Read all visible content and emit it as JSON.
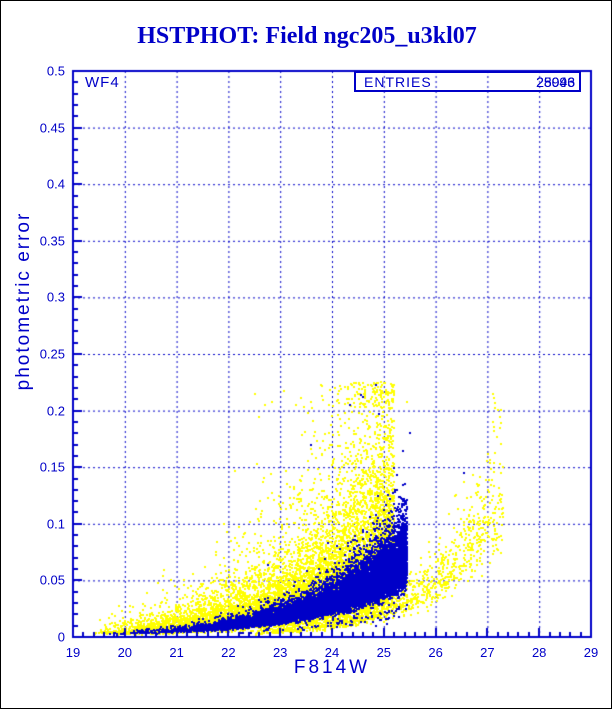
{
  "accent_color": "#0000C8",
  "title": {
    "text": "HSTPHOT: Field ngc205_u3kl07"
  },
  "plot": {
    "detector_label": "WF4",
    "stats_box": {
      "label": "ENTRIES",
      "values": [
        "28996",
        "25043"
      ]
    },
    "x_axis": {
      "label": "F814W",
      "tick_labels": [
        "19",
        "20",
        "21",
        "22",
        "23",
        "24",
        "25",
        "26",
        "27",
        "28",
        "29"
      ]
    },
    "y_axis": {
      "label": "photometric error",
      "tick_labels": [
        "0",
        "0.05",
        "0.1",
        "0.15",
        "0.2",
        "0.25",
        "0.3",
        "0.35",
        "0.4",
        "0.45",
        "0.5"
      ]
    }
  },
  "chart_data": {
    "type": "scatter",
    "title": "HSTPHOT: Field ngc205_u3kl07",
    "xlabel": "F814W",
    "ylabel": "photometric error",
    "xlim": [
      19,
      29
    ],
    "ylim": [
      0,
      0.5
    ],
    "x_major_ticks": [
      19,
      20,
      21,
      22,
      23,
      24,
      25,
      26,
      27,
      28,
      29
    ],
    "x_minor_step": 0.2,
    "y_major_ticks": [
      0,
      0.05,
      0.1,
      0.15,
      0.2,
      0.25,
      0.3,
      0.35,
      0.4,
      0.45,
      0.5
    ],
    "y_minor_step": 0.01,
    "grid": {
      "style": "dashed",
      "on_major_x": true,
      "on_major_y": true
    },
    "annotations": {
      "detector": "WF4",
      "entries_overprinted": [
        28996,
        25043
      ]
    },
    "marker_px": 2,
    "err_clamp": [
      0.0015,
      0.225
    ],
    "series": [
      {
        "name": "yellow-error-cloud",
        "color": "#FFFF00",
        "kind": "generated-band",
        "n": 12000,
        "seed": 11,
        "mag_min": 19.35,
        "mag_max": 25.2,
        "mag_power": 0.45,
        "err_at_bright": 0.0038,
        "err_growth_k": 0.5,
        "sigma_down": 0.4,
        "sigma_up": 0.7,
        "description": "dense diffuse yellow cloud, errors ~0.004 at mag 19.5 rising to ~0.02-0.13 by mag 24.5"
      },
      {
        "name": "yellow-faint-sequence",
        "color": "#FFFF00",
        "kind": "generated-band",
        "n": 1100,
        "seed": 12,
        "mag_min": 22.5,
        "mag_max": 27.3,
        "mag_power": 0.7,
        "err_at_bright": 0.0035,
        "err_growth_k": 0.75,
        "sigma_down": 0.2,
        "sigma_up": 0.28,
        "description": "thin second yellow band below blue sequence, rises to ~0.1 at mag 26.6"
      },
      {
        "name": "blue-error-sequence",
        "color": "#0000C8",
        "kind": "generated-band",
        "n": 12000,
        "seed": 13,
        "mag_min": 19.4,
        "mag_max": 25.45,
        "mag_power": 0.3,
        "err_at_bright": 0.0024,
        "err_growth_k": 0.55,
        "sigma_down": 0.18,
        "sigma_up": 0.28,
        "description": "tight dense blue crescent, errors ~0.002 at mag 19.5 rising to ~0.05-0.12 at mag 25.4"
      },
      {
        "name": "blue-outlier-halo",
        "color": "#0000C8",
        "kind": "generated-band",
        "n": 140,
        "seed": 14,
        "mag_min": 21.8,
        "mag_max": 25.45,
        "mag_power": 0.45,
        "err_at_bright": 0.004,
        "err_growth_k": 0.55,
        "sigma_down": 0.3,
        "sigma_up": 0.85,
        "description": "sparse blue points scattered above the sequence up to ~0.2"
      },
      {
        "name": "yellow-outlier-points",
        "color": "#FFFF00",
        "kind": "points",
        "points": [
          [
            25.2,
            0.214
          ],
          [
            25.45,
            0.208
          ],
          [
            27.1,
            0.215
          ],
          [
            24.15,
            0.222
          ],
          [
            23.3,
            0.205
          ],
          [
            24.6,
            0.19
          ],
          [
            25.0,
            0.175
          ]
        ]
      },
      {
        "name": "blue-outlier-points",
        "color": "#0000C8",
        "kind": "points",
        "points": [
          [
            24.9,
            0.197
          ],
          [
            25.5,
            0.18
          ],
          [
            24.35,
            0.205
          ],
          [
            26.55,
            0.145
          ],
          [
            23.6,
            0.17
          ]
        ]
      }
    ]
  }
}
